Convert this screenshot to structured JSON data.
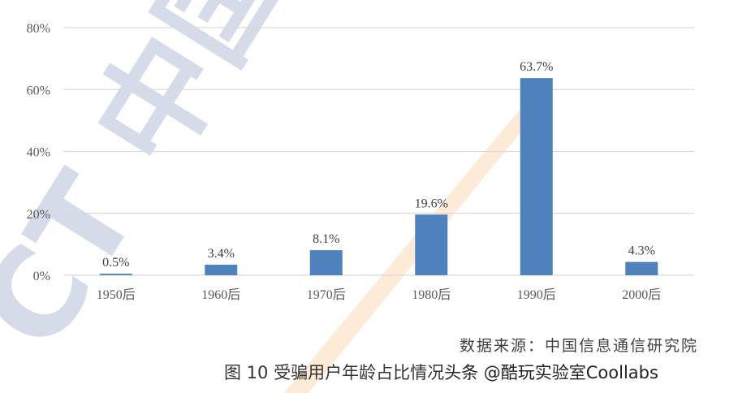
{
  "chart_data": {
    "type": "bar",
    "categories": [
      "1950后",
      "1960后",
      "1970后",
      "1980后",
      "1990后",
      "2000后"
    ],
    "values": [
      0.5,
      3.4,
      8.1,
      19.6,
      63.7,
      4.3
    ],
    "data_labels": [
      "0.5%",
      "3.4%",
      "8.1%",
      "19.6%",
      "63.7%",
      "4.3%"
    ],
    "yticks": [
      "0%",
      "20%",
      "40%",
      "60%",
      "80%"
    ],
    "ytick_values": [
      0,
      20,
      40,
      60,
      80
    ],
    "ylim": [
      0,
      80
    ],
    "grid": true,
    "bar_color": "#4f81bd",
    "title": "",
    "xlabel": "",
    "ylabel": ""
  },
  "source": "数据来源：中国信息通信研究院",
  "caption": "图 10   受骗用户年龄占比情况",
  "attribution": "头条 @酷玩实验室Coollabs",
  "watermark": "CAICT 中国信通院"
}
